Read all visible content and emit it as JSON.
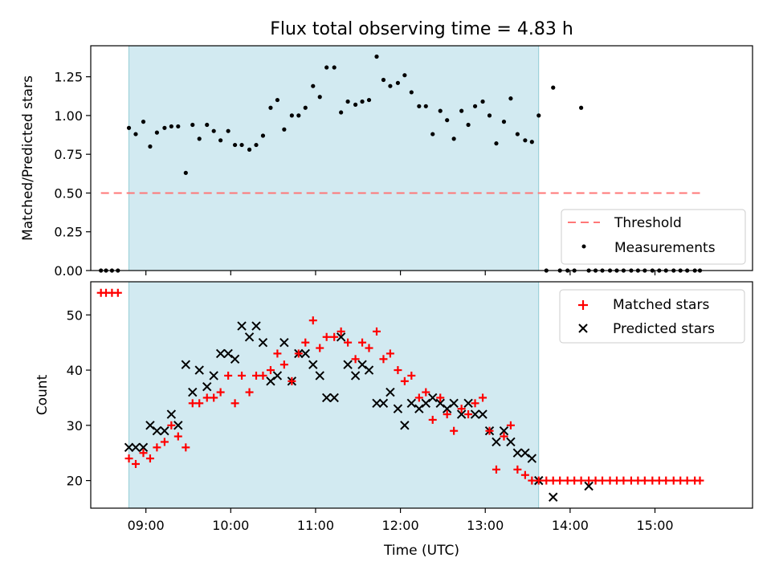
{
  "figure": {
    "title": "Flux total observing time = 4.83 h",
    "xlabel": "Time (UTC)",
    "x_ticks": [
      "09:00",
      "10:00",
      "11:00",
      "12:00",
      "13:00",
      "14:00",
      "15:00"
    ],
    "x_tick_hours": [
      9,
      10,
      11,
      12,
      13,
      14,
      15
    ],
    "xlim_hours": [
      8.35,
      16.15
    ],
    "shaded_span_hours": [
      8.8,
      13.63
    ],
    "shade_color": "#add8e6"
  },
  "chart_data": [
    {
      "type": "scatter",
      "ylabel": "Matched/Predicted stars",
      "ylim": [
        0,
        1.45
      ],
      "y_ticks": [
        "0.00",
        "0.25",
        "0.50",
        "0.75",
        "1.00",
        "1.25"
      ],
      "y_tick_values": [
        0,
        0.25,
        0.5,
        0.75,
        1.0,
        1.25
      ],
      "legend": {
        "placement": "lower-right",
        "entries": [
          "Threshold",
          "Measurements"
        ]
      },
      "threshold": {
        "name": "Threshold",
        "value": 0.5,
        "x_range_hours": [
          8.47,
          15.53
        ],
        "color": "#ff7777",
        "style": "dashed"
      },
      "series": [
        {
          "name": "Measurements",
          "color": "#000000",
          "marker": "dot",
          "x_hours": [
            8.47,
            8.53,
            8.6,
            8.67,
            8.8,
            8.88,
            8.97,
            9.05,
            9.13,
            9.22,
            9.3,
            9.38,
            9.47,
            9.55,
            9.63,
            9.72,
            9.8,
            9.88,
            9.97,
            10.05,
            10.13,
            10.22,
            10.3,
            10.38,
            10.47,
            10.55,
            10.63,
            10.72,
            10.8,
            10.88,
            10.97,
            11.05,
            11.13,
            11.22,
            11.3,
            11.38,
            11.47,
            11.55,
            11.63,
            11.72,
            11.8,
            11.88,
            11.97,
            12.05,
            12.13,
            12.22,
            12.3,
            12.38,
            12.47,
            12.55,
            12.63,
            12.72,
            12.8,
            12.88,
            12.97,
            13.05,
            13.13,
            13.22,
            13.3,
            13.38,
            13.47,
            13.55,
            13.63,
            13.72,
            13.8,
            13.88,
            13.97,
            14.05,
            14.13,
            14.22,
            14.3,
            14.38,
            14.47,
            14.55,
            14.63,
            14.72,
            14.8,
            14.88,
            14.97,
            15.05,
            15.13,
            15.22,
            15.3,
            15.38,
            15.47,
            15.53
          ],
          "y": [
            0,
            0,
            0,
            0,
            0.92,
            0.88,
            0.96,
            0.8,
            0.89,
            0.92,
            0.93,
            0.93,
            0.63,
            0.94,
            0.85,
            0.94,
            0.9,
            0.84,
            0.9,
            0.81,
            0.81,
            0.78,
            0.81,
            0.87,
            1.05,
            1.1,
            0.91,
            1.0,
            1.0,
            1.05,
            1.19,
            1.12,
            1.31,
            1.31,
            1.02,
            1.09,
            1.07,
            1.09,
            1.1,
            1.38,
            1.23,
            1.19,
            1.21,
            1.26,
            1.15,
            1.06,
            1.06,
            0.88,
            1.03,
            0.97,
            0.85,
            1.03,
            0.94,
            1.06,
            1.09,
            1.0,
            0.82,
            0.96,
            1.11,
            0.88,
            0.84,
            0.83,
            1.0,
            0,
            1.18,
            0,
            0,
            0,
            1.05,
            0,
            0,
            0,
            0,
            0,
            0,
            0,
            0,
            0,
            0,
            0,
            0,
            0,
            0,
            0,
            0,
            0
          ]
        }
      ]
    },
    {
      "type": "scatter",
      "ylabel": "Count",
      "ylim": [
        15,
        56
      ],
      "y_ticks": [
        "20",
        "30",
        "40",
        "50"
      ],
      "y_tick_values": [
        20,
        30,
        40,
        50
      ],
      "legend": {
        "placement": "top-right",
        "entries": [
          "Matched stars",
          "Predicted stars"
        ]
      },
      "series": [
        {
          "name": "Matched stars",
          "color": "#ff0000",
          "marker": "plus",
          "x_hours": [
            8.47,
            8.53,
            8.6,
            8.67,
            8.8,
            8.88,
            8.97,
            9.05,
            9.13,
            9.22,
            9.3,
            9.38,
            9.47,
            9.55,
            9.63,
            9.72,
            9.8,
            9.88,
            9.97,
            10.05,
            10.13,
            10.22,
            10.3,
            10.38,
            10.47,
            10.55,
            10.63,
            10.72,
            10.8,
            10.88,
            10.97,
            11.05,
            11.13,
            11.22,
            11.3,
            11.38,
            11.47,
            11.55,
            11.63,
            11.72,
            11.8,
            11.88,
            11.97,
            12.05,
            12.13,
            12.22,
            12.3,
            12.38,
            12.47,
            12.55,
            12.63,
            12.72,
            12.8,
            12.88,
            12.97,
            13.05,
            13.13,
            13.22,
            13.3,
            13.38,
            13.47,
            13.55,
            13.63,
            13.72,
            13.8,
            13.88,
            13.97,
            14.05,
            14.13,
            14.22,
            14.3,
            14.38,
            14.47,
            14.55,
            14.63,
            14.72,
            14.8,
            14.88,
            14.97,
            15.05,
            15.13,
            15.22,
            15.3,
            15.38,
            15.47,
            15.53
          ],
          "y": [
            54,
            54,
            54,
            54,
            24,
            23,
            25,
            24,
            26,
            27,
            30,
            28,
            26,
            34,
            34,
            35,
            35,
            36,
            39,
            34,
            39,
            36,
            39,
            39,
            40,
            43,
            41,
            38,
            43,
            45,
            49,
            44,
            46,
            46,
            47,
            45,
            42,
            45,
            44,
            47,
            42,
            43,
            40,
            38,
            39,
            35,
            36,
            31,
            35,
            32,
            29,
            33,
            32,
            34,
            35,
            29,
            22,
            28,
            30,
            22,
            21,
            20,
            20,
            20,
            20,
            20,
            20,
            20,
            20,
            20,
            20,
            20,
            20,
            20,
            20,
            20,
            20,
            20,
            20,
            20,
            20,
            20,
            20,
            20,
            20,
            20
          ]
        },
        {
          "name": "Predicted stars",
          "color": "#000000",
          "marker": "x",
          "x_hours": [
            8.8,
            8.88,
            8.97,
            9.05,
            9.13,
            9.22,
            9.3,
            9.38,
            9.47,
            9.55,
            9.63,
            9.72,
            9.8,
            9.88,
            9.97,
            10.05,
            10.13,
            10.22,
            10.3,
            10.38,
            10.47,
            10.55,
            10.63,
            10.72,
            10.8,
            10.88,
            10.97,
            11.05,
            11.13,
            11.22,
            11.3,
            11.38,
            11.47,
            11.55,
            11.63,
            11.72,
            11.8,
            11.88,
            11.97,
            12.05,
            12.13,
            12.22,
            12.3,
            12.38,
            12.47,
            12.55,
            12.63,
            12.72,
            12.8,
            12.88,
            12.97,
            13.05,
            13.13,
            13.22,
            13.3,
            13.38,
            13.47,
            13.55,
            13.63,
            13.8,
            14.22
          ],
          "y": [
            26,
            26,
            26,
            30,
            29,
            29,
            32,
            30,
            41,
            36,
            40,
            37,
            39,
            43,
            43,
            42,
            48,
            46,
            48,
            45,
            38,
            39,
            45,
            38,
            43,
            43,
            41,
            39,
            35,
            35,
            46,
            41,
            39,
            41,
            40,
            34,
            34,
            36,
            33,
            30,
            34,
            33,
            34,
            35,
            34,
            33,
            34,
            32,
            34,
            32,
            32,
            29,
            27,
            29,
            27,
            25,
            25,
            24,
            20,
            17,
            19
          ]
        }
      ]
    }
  ]
}
